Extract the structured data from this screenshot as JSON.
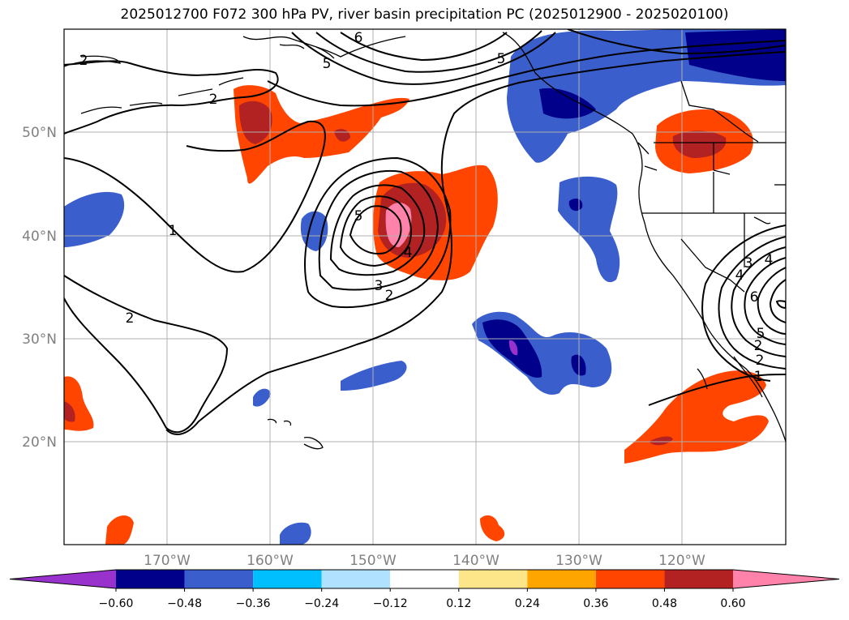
{
  "title": "2025012700 F072 300 hPa PV, river basin precipitation PC (2025012900 - 2025020100)",
  "lat_labels": [
    "50°N",
    "40°N",
    "30°N",
    "20°N"
  ],
  "lon_labels": [
    "170°W",
    "160°W",
    "150°W",
    "140°W",
    "130°W",
    "120°W"
  ],
  "colorbar": {
    "colors": [
      "#9932cc",
      "#00008b",
      "#3a5fcd",
      "#00bfff",
      "#b0e2ff",
      "#ffffff",
      "#fde68a",
      "#ffa500",
      "#ff4500",
      "#b22222",
      "#ff82ab"
    ],
    "ticks": [
      "−0.60",
      "−0.48",
      "−0.36",
      "−0.24",
      "−0.12",
      "0.12",
      "0.24",
      "0.36",
      "0.48",
      "0.60"
    ]
  },
  "contour_labels": [
    "2",
    "2",
    "1",
    "2",
    "5",
    "5",
    "4",
    "3",
    "2",
    "6",
    "5",
    "3",
    "4",
    "4",
    "6",
    "5",
    "2",
    "1",
    "2"
  ]
}
